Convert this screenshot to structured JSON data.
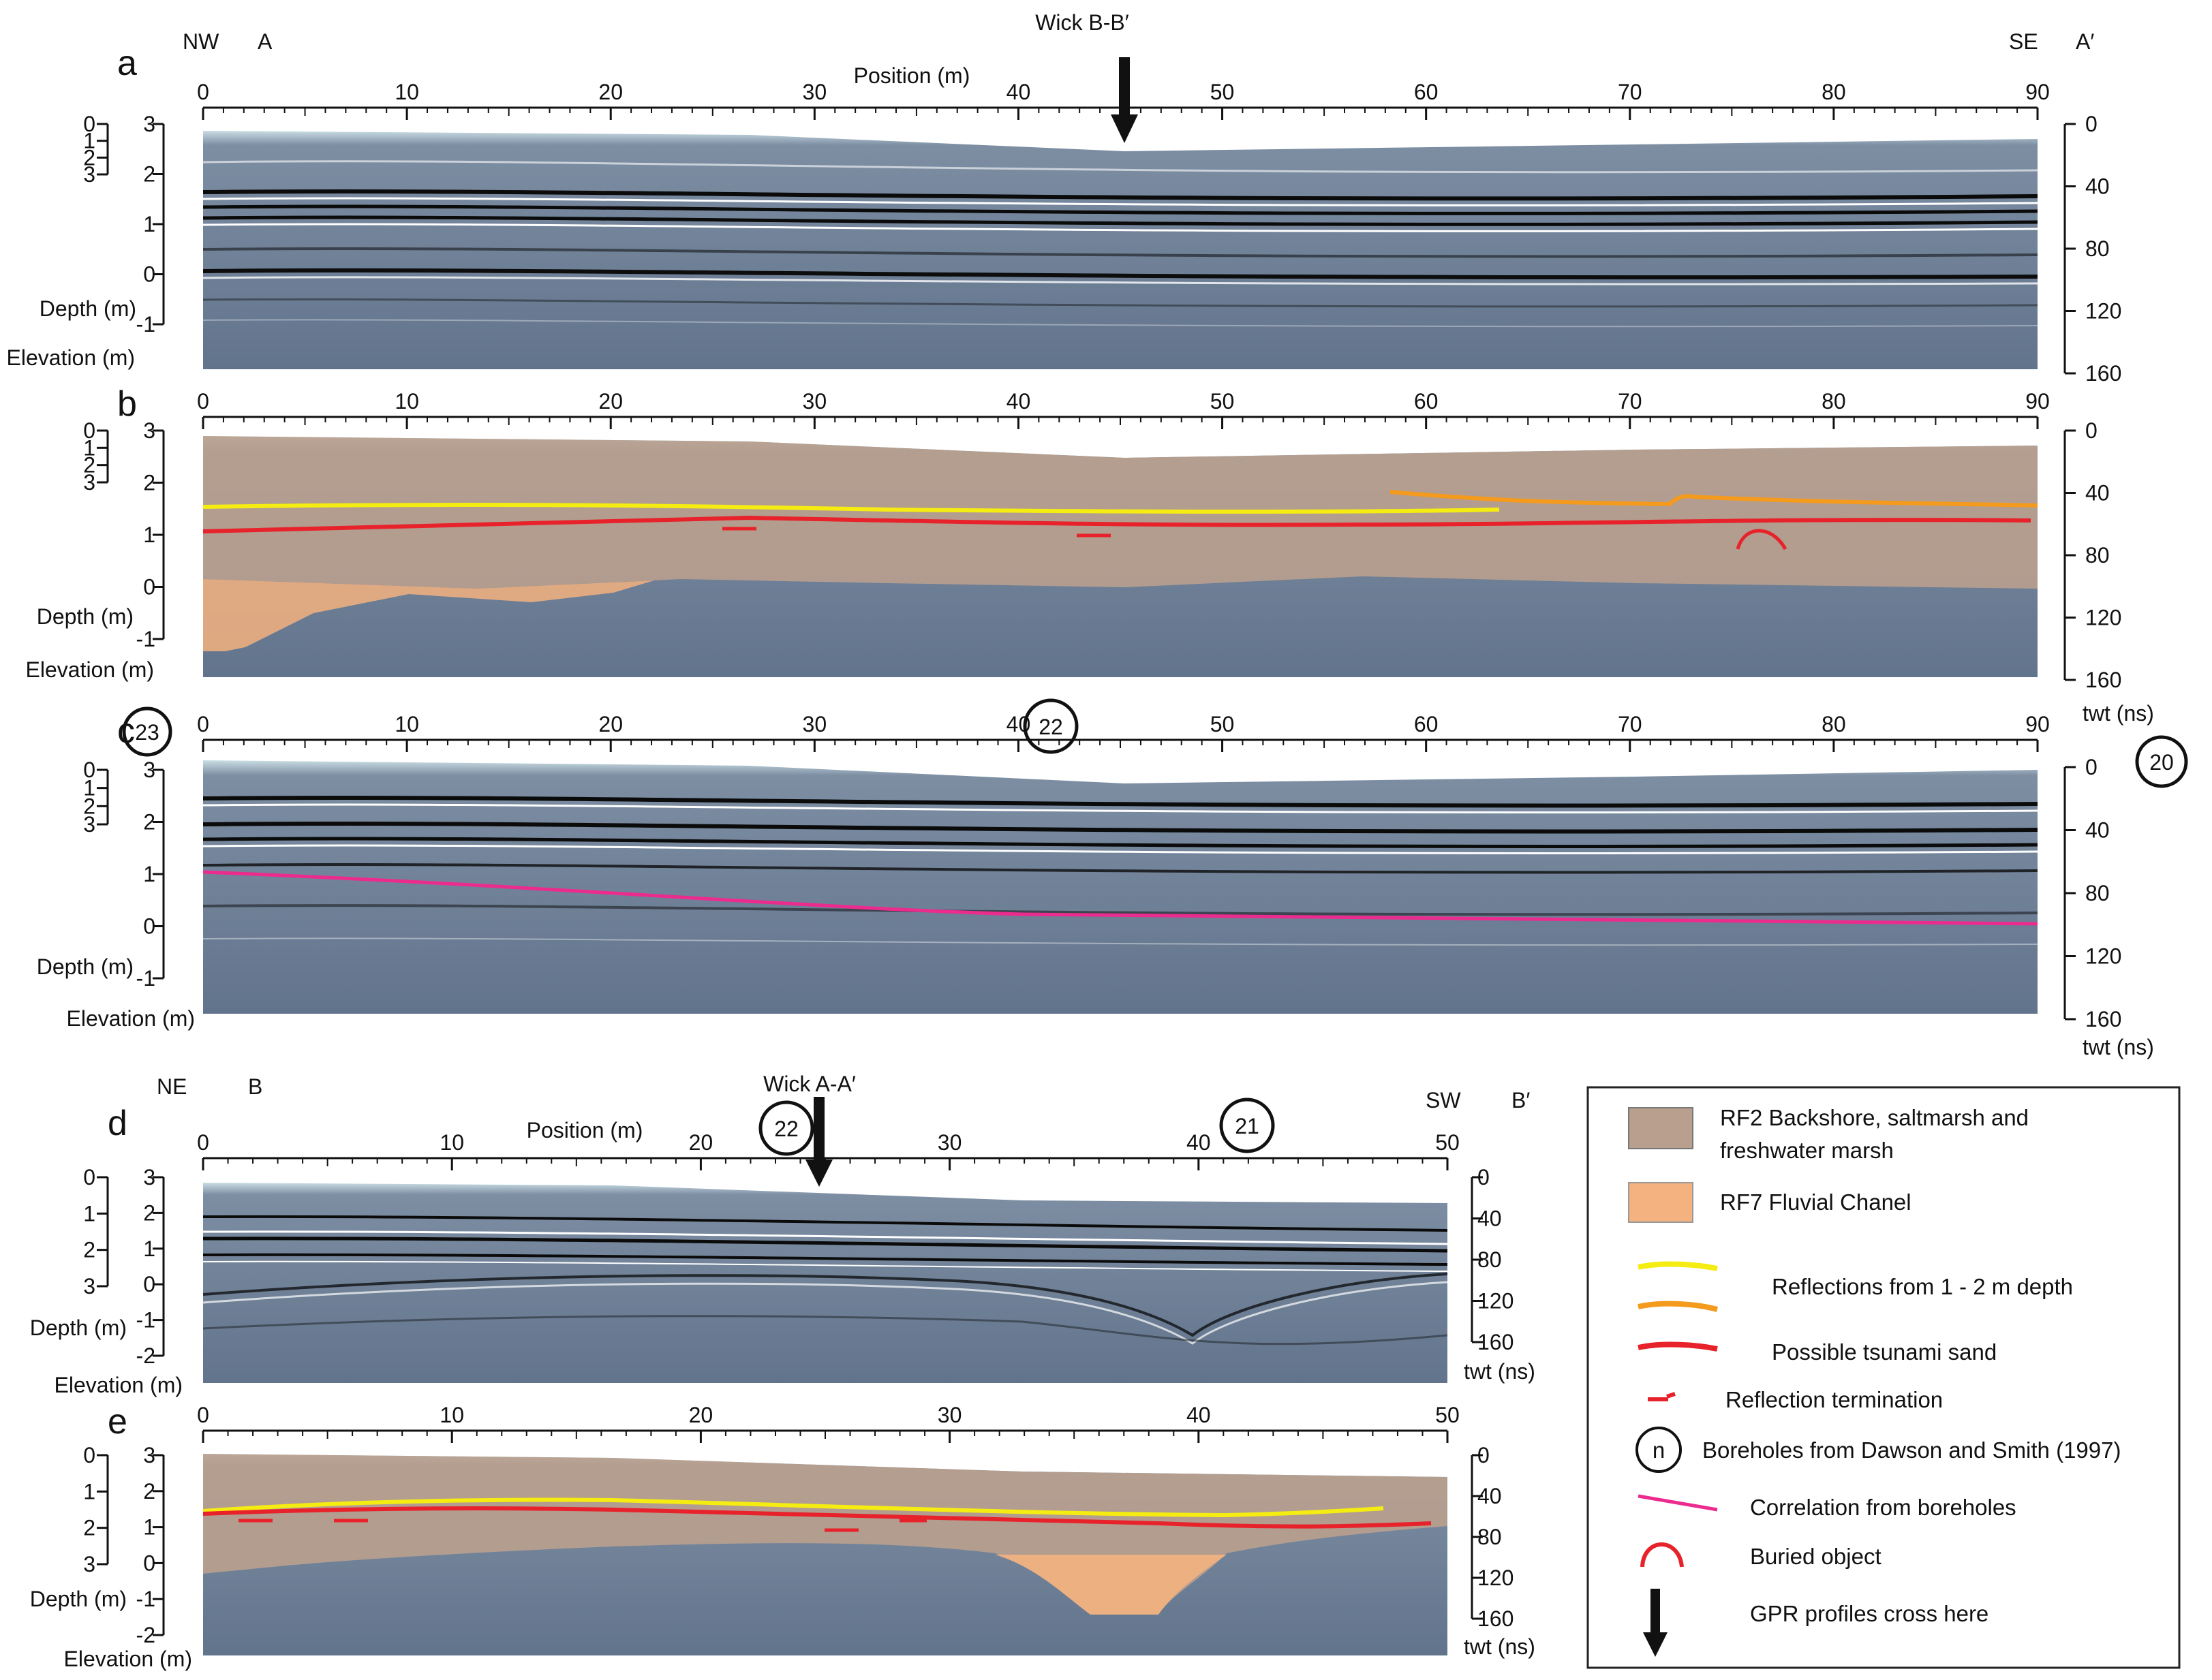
{
  "colors": {
    "rf2": "#b9a08e",
    "rf7": "#f3b27f",
    "yellow": "#f5ec12",
    "orange": "#f49a1d",
    "red": "#e8222a",
    "magenta": "#ec2b8e",
    "gpr_bg": "#6f7f96",
    "gpr_top": "#b8d2db"
  },
  "figure_ab": {
    "dir_left": "NW",
    "dir_right": "SE",
    "end_left": "A",
    "end_right": "A′",
    "arrow_label": "Wick B-B′",
    "position_label": "Position (m)",
    "position_ticks": [
      "0",
      "10",
      "20",
      "30",
      "40",
      "50",
      "60",
      "70",
      "80",
      "90"
    ]
  },
  "panels": {
    "a": {
      "letter": "a"
    },
    "b": {
      "letter": "b"
    },
    "c": {
      "letter": "c"
    },
    "d": {
      "letter": "d"
    },
    "e": {
      "letter": "e"
    }
  },
  "axes": {
    "depth_ticks_abc": [
      "0",
      "1",
      "2",
      "3"
    ],
    "elev_ticks_abc": [
      "3",
      "2",
      "1",
      "0",
      "-1"
    ],
    "twt_ticks_abc": [
      "0",
      "40",
      "80",
      "120",
      "160"
    ],
    "depth_ticks_de": [
      "0",
      "1",
      "2",
      "3"
    ],
    "elev_ticks_de": [
      "3",
      "2",
      "1",
      "0",
      "-1",
      "-2"
    ],
    "twt_ticks_de": [
      "0",
      "40",
      "80",
      "120",
      "160"
    ],
    "depth_label": "Depth (m)",
    "elevation_label": "Elevation (m)",
    "twt_label": "twt (ns)"
  },
  "boreholes": {
    "c_left": "23",
    "c_mid": "22",
    "c_right": "20",
    "d_mid": "22",
    "d_right": "21"
  },
  "figure_de": {
    "dir_left": "NE",
    "dir_right": "SW",
    "end_left": "B",
    "end_right": "B′",
    "arrow_label": "Wick A-A′",
    "position_label": "Position (m)",
    "position_ticks": [
      "0",
      "10",
      "20",
      "30",
      "40",
      "50"
    ]
  },
  "legend": {
    "rf2_line1": "RF2 Backshore, saltmarsh and",
    "rf2_line2": "freshwater marsh",
    "rf7": "RF7 Fluvial Chanel",
    "reflections": "Reflections from 1 - 2 m depth",
    "tsunami": "Possible tsunami sand",
    "termination": "Reflection termination",
    "borehole_symbol": "n",
    "boreholes": "Boreholes from Dawson and Smith (1997)",
    "correlation": "Correlation from boreholes",
    "buried": "Buried object",
    "cross": "GPR profiles cross here"
  }
}
